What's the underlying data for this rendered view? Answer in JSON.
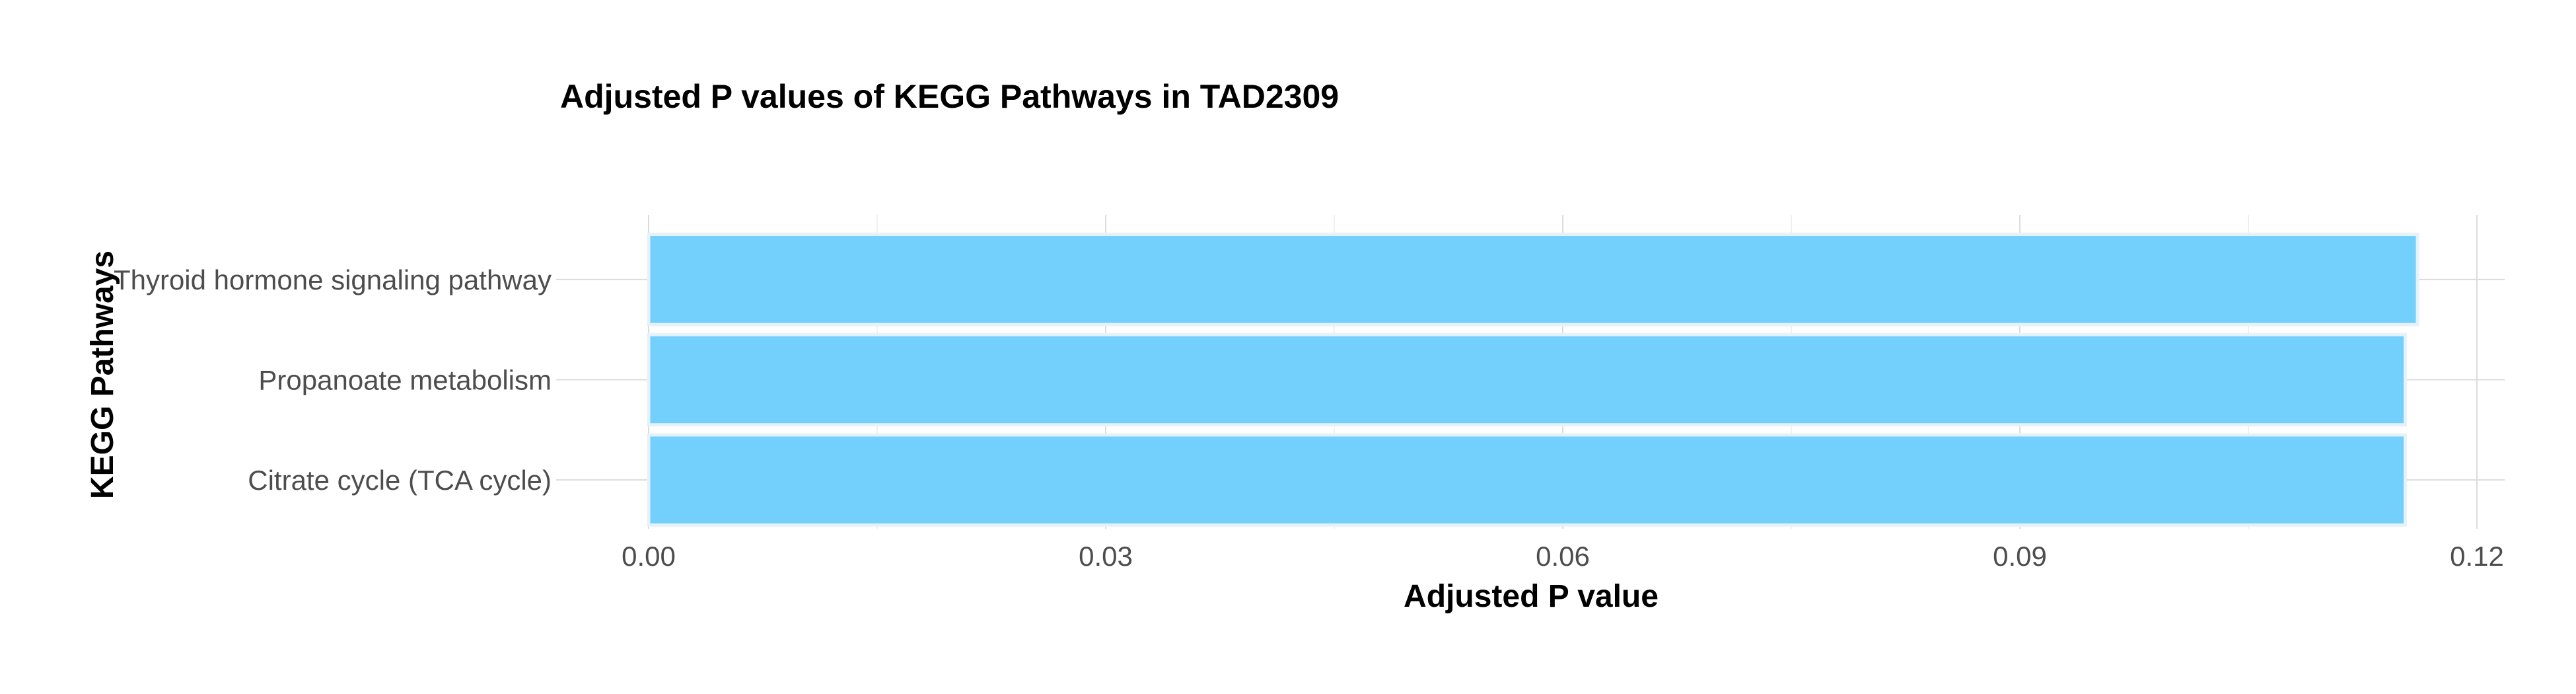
{
  "chart_data": {
    "type": "bar",
    "orientation": "horizontal",
    "title": "Adjusted P values of KEGG Pathways in TAD2309",
    "xlabel": "Adjusted P value",
    "ylabel": "KEGG Pathways",
    "categories": [
      "Thyroid hormone signaling pathway",
      "Propanoate metabolism",
      "Citrate cycle (TCA cycle)"
    ],
    "values": [
      0.1161,
      0.1153,
      0.1153
    ],
    "xlim": [
      0,
      0.12
    ],
    "xticks": [
      0,
      0.03,
      0.06,
      0.09,
      0.12
    ],
    "xtick_labels": [
      "0.00",
      "0.03",
      "0.06",
      "0.09",
      "0.12"
    ],
    "grid": true,
    "bar_color": "#73CFFB",
    "legend": "none"
  }
}
